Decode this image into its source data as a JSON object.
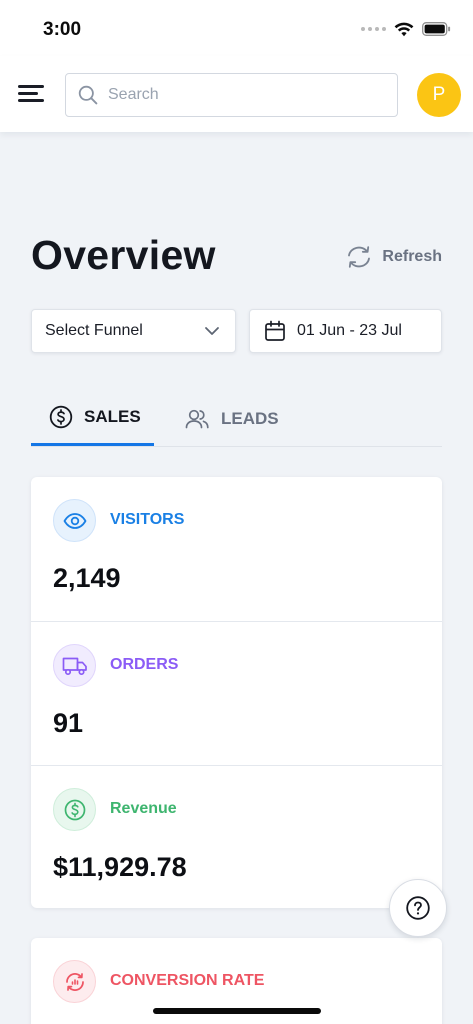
{
  "status_bar": {
    "time": "3:00"
  },
  "header": {
    "search_placeholder": "Search",
    "avatar_initial": "P",
    "avatar_color": "#FBC514"
  },
  "page": {
    "title": "Overview",
    "refresh_label": "Refresh"
  },
  "filters": {
    "funnel_label": "Select Funnel",
    "date_range": "01 Jun - 23 Jul"
  },
  "tabs": [
    {
      "label": "SALES",
      "icon": "dollar-circle-icon",
      "active": true
    },
    {
      "label": "LEADS",
      "icon": "users-icon",
      "active": false
    }
  ],
  "stats": [
    {
      "label": "VISITORS",
      "value": "2,149",
      "icon": "eye-icon",
      "color": "#1A80E5",
      "bg": "#E7F2FD"
    },
    {
      "label": "ORDERS",
      "value": "91",
      "icon": "truck-icon",
      "color": "#8B5CF6",
      "bg": "#F1ECFE"
    },
    {
      "label": "Revenue",
      "value": "$11,929.78",
      "icon": "dollar-circle-icon",
      "color": "#3EB56F",
      "bg": "#E8F7EE"
    }
  ],
  "conversion": {
    "label": "CONVERSION RATE",
    "icon": "conversion-icon",
    "color": "#EE5563",
    "bg": "#FDECEE"
  },
  "accent_color": "#1476E6"
}
